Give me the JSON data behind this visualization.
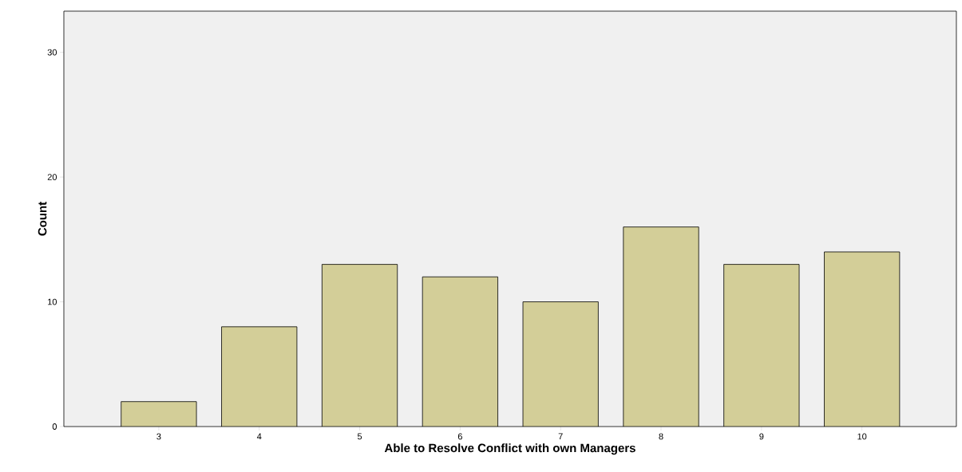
{
  "chart_data": {
    "type": "bar",
    "xlabel": "Able to Resolve Conflict with own Managers",
    "ylabel": "Count",
    "categories": [
      "3",
      "4",
      "5",
      "6",
      "7",
      "8",
      "9",
      "10"
    ],
    "values": [
      2,
      8,
      13,
      12,
      10,
      16,
      13,
      14
    ],
    "color": "#d3ce98",
    "ylim": [
      0,
      33.3
    ],
    "yticks": [
      0,
      10,
      20,
      30
    ],
    "grid": false
  }
}
